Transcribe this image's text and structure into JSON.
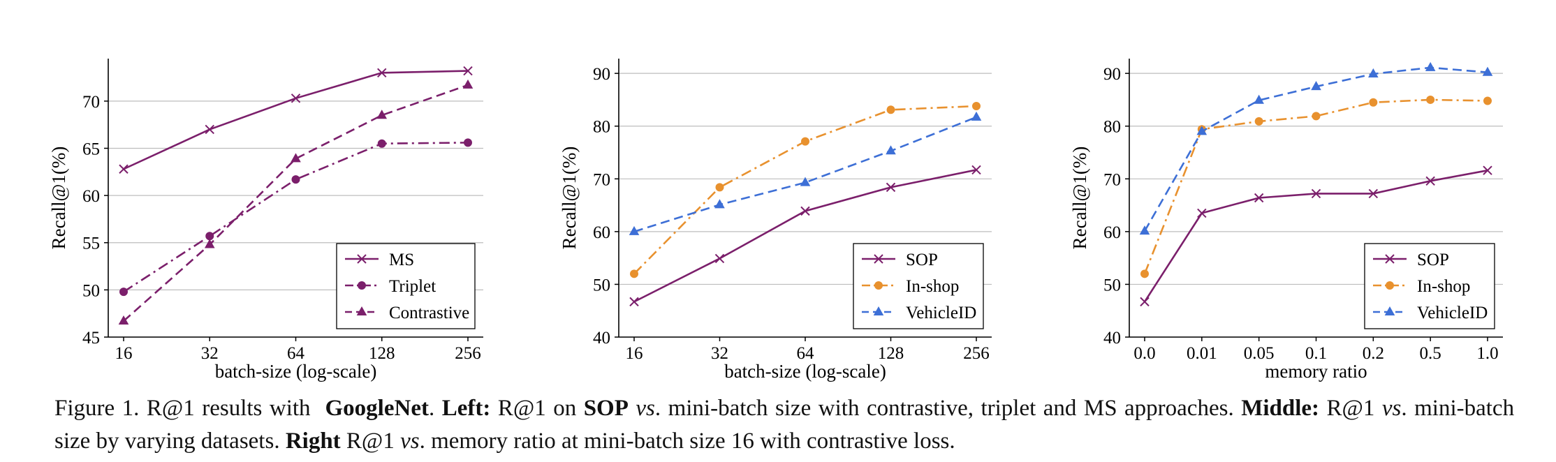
{
  "colors": {
    "purple": "#7b1f6b",
    "orange": "#e8912e",
    "blue": "#3d6fd6",
    "grid": "#bdbdbd",
    "axis": "#000000"
  },
  "chart_data": [
    {
      "type": "line",
      "xlabel": "batch-size (log-scale)",
      "ylabel": "Recall@1(%)",
      "x": [
        "16",
        "32",
        "64",
        "128",
        "256"
      ],
      "x_ticks": [
        "16",
        "32",
        "64",
        "128",
        "256"
      ],
      "ylim": [
        45,
        74.5
      ],
      "y_ticks": [
        45,
        50,
        55,
        60,
        65,
        70
      ],
      "grid": "horizontal",
      "legend": "bottom-right",
      "series": [
        {
          "name": "MS",
          "marker": "x",
          "line": "solid",
          "color": "#7b1f6b",
          "values": [
            62.8,
            67.0,
            70.3,
            73.0,
            73.2
          ]
        },
        {
          "name": "Triplet",
          "marker": "circle",
          "line": "dashdot",
          "color": "#7b1f6b",
          "values": [
            49.8,
            55.7,
            61.7,
            65.5,
            65.6
          ]
        },
        {
          "name": "Contrastive",
          "marker": "triangle",
          "line": "dashed",
          "color": "#7b1f6b",
          "values": [
            46.7,
            54.8,
            63.9,
            68.5,
            71.7
          ]
        }
      ]
    },
    {
      "type": "line",
      "xlabel": "batch-size (log-scale)",
      "ylabel": "Recall@1(%)",
      "x": [
        "16",
        "32",
        "64",
        "128",
        "256"
      ],
      "x_ticks": [
        "16",
        "32",
        "64",
        "128",
        "256"
      ],
      "ylim": [
        40,
        92.8
      ],
      "y_ticks": [
        40,
        50,
        60,
        70,
        80,
        90
      ],
      "grid": "horizontal",
      "legend": "bottom-right",
      "series": [
        {
          "name": "SOP",
          "marker": "x",
          "line": "solid",
          "color": "#7b1f6b",
          "values": [
            46.7,
            54.9,
            63.9,
            68.4,
            71.7
          ]
        },
        {
          "name": "In-shop",
          "marker": "circle",
          "line": "dashdot",
          "color": "#e8912e",
          "values": [
            52.0,
            68.4,
            77.1,
            83.1,
            83.8
          ]
        },
        {
          "name": "VehicleID",
          "marker": "triangle",
          "line": "dashed",
          "color": "#3d6fd6",
          "values": [
            60.0,
            65.1,
            69.3,
            75.3,
            81.7
          ]
        }
      ]
    },
    {
      "type": "line",
      "xlabel": "memory ratio",
      "ylabel": "Recall@1(%)",
      "x": [
        "0.0",
        "0.01",
        "0.05",
        "0.1",
        "0.2",
        "0.5",
        "1.0"
      ],
      "x_ticks": [
        "0.0",
        "0.01",
        "0.05",
        "0.1",
        "0.2",
        "0.5",
        "1.0"
      ],
      "ylim": [
        40,
        92.8
      ],
      "y_ticks": [
        40,
        50,
        60,
        70,
        80,
        90
      ],
      "grid": "horizontal",
      "legend": "bottom-right",
      "series": [
        {
          "name": "SOP",
          "marker": "x",
          "line": "solid",
          "color": "#7b1f6b",
          "values": [
            46.7,
            63.5,
            66.4,
            67.2,
            67.2,
            69.6,
            71.6
          ]
        },
        {
          "name": "In-shop",
          "marker": "circle",
          "line": "dashdot",
          "color": "#e8912e",
          "values": [
            52.0,
            79.4,
            80.9,
            81.9,
            84.5,
            85.0,
            84.8
          ]
        },
        {
          "name": "VehicleID",
          "marker": "triangle",
          "line": "dashed",
          "color": "#3d6fd6",
          "values": [
            60.1,
            79.0,
            84.9,
            87.5,
            89.9,
            91.1,
            90.2
          ]
        }
      ]
    }
  ],
  "caption": {
    "fig_label": "Figure 1. R@1 results with",
    "network": "GoogleNet",
    "dot1": ".",
    "left_label": "Left:",
    "left_text_a": "R@1 on",
    "left_dataset": "SOP",
    "vs": "vs",
    "left_text_b": ". mini-batch size with contrastive, triplet and MS approaches.",
    "middle_label": "Middle:",
    "middle_text_a": "R@1",
    "middle_text_b": ". mini-batch size by varying datasets.",
    "right_label": "Right",
    "right_text_a": "R@1",
    "right_text_b": ". memory ratio at mini-batch size 16 with contrastive loss."
  }
}
